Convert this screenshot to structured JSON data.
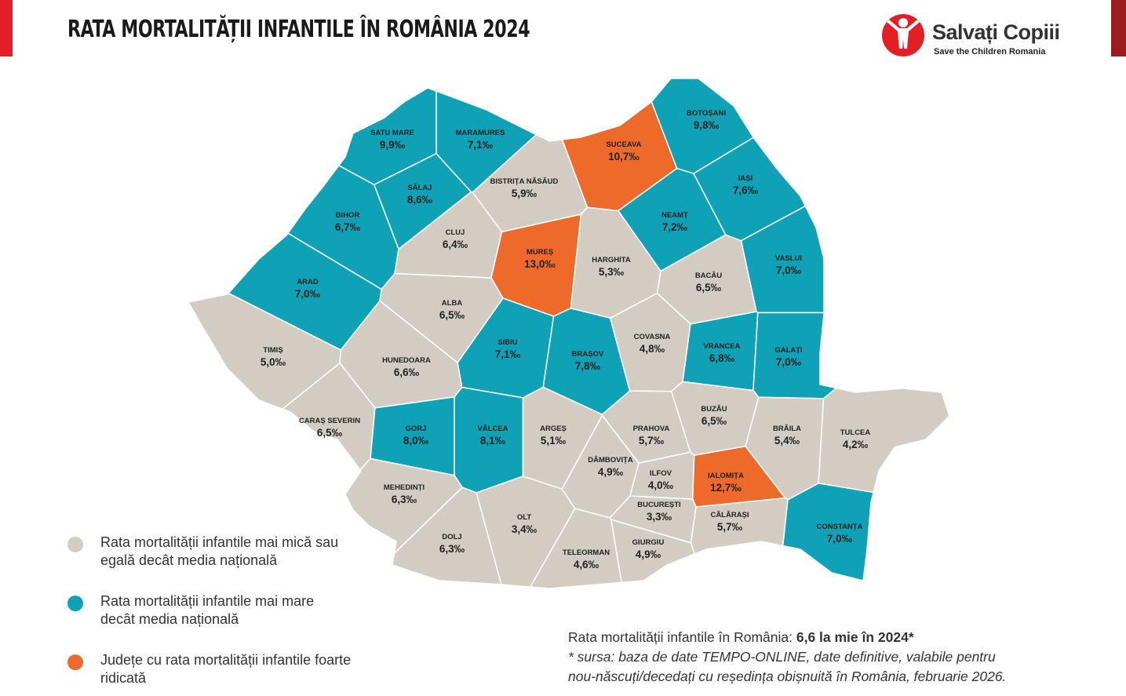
{
  "header": {
    "title": "RATA MORTALITĂȚII INFANTILE ÎN ROMÂNIA 2024",
    "logo_name": "Salvați Copiii",
    "logo_subtitle": "Save the Children Romania"
  },
  "legend": [
    {
      "label": "Rata mortalității infantile mai mică sau egală decât media națională",
      "color": "#d2ccc2"
    },
    {
      "label": "Rata mortalității infantile mai mare decât media națională",
      "color": "#0fa2b6"
    },
    {
      "label": "Județe cu rata mortalității infantile foarte ridicată",
      "color": "#ee6a2b"
    }
  ],
  "counties": [
    {
      "name": "SATU MARE",
      "rate": "9,9‰",
      "group": 1
    },
    {
      "name": "MARAMUREȘ",
      "rate": "7,1‰",
      "group": 1
    },
    {
      "name": "BOTOȘANI",
      "rate": "9,8‰",
      "group": 1
    },
    {
      "name": "SUCEAVA",
      "rate": "10,7‰",
      "group": 2
    },
    {
      "name": "SĂLAJ",
      "rate": "8,6‰",
      "group": 1
    },
    {
      "name": "BISTRIȚA NĂSĂUD",
      "rate": "5,9‰",
      "group": 0
    },
    {
      "name": "IAȘI",
      "rate": "7,6‰",
      "group": 1
    },
    {
      "name": "BIHOR",
      "rate": "6,7‰",
      "group": 1
    },
    {
      "name": "CLUJ",
      "rate": "6,4‰",
      "group": 0
    },
    {
      "name": "NEAMȚ",
      "rate": "7,2‰",
      "group": 1
    },
    {
      "name": "MUREȘ",
      "rate": "13,0‰",
      "group": 2
    },
    {
      "name": "HARGHITA",
      "rate": "5,3‰",
      "group": 0
    },
    {
      "name": "VASLUI",
      "rate": "7,0‰",
      "group": 1
    },
    {
      "name": "BACĂU",
      "rate": "6,5‰",
      "group": 0
    },
    {
      "name": "ARAD",
      "rate": "7,0‰",
      "group": 1
    },
    {
      "name": "ALBA",
      "rate": "6,5‰",
      "group": 0
    },
    {
      "name": "TIMIȘ",
      "rate": "5,0‰",
      "group": 0
    },
    {
      "name": "HUNEDOARA",
      "rate": "6,6‰",
      "group": 0
    },
    {
      "name": "SIBIU",
      "rate": "7,1‰",
      "group": 1
    },
    {
      "name": "BRAȘOV",
      "rate": "7,8‰",
      "group": 1
    },
    {
      "name": "COVASNA",
      "rate": "4,8‰",
      "group": 0
    },
    {
      "name": "VRANCEA",
      "rate": "6,8‰",
      "group": 1
    },
    {
      "name": "GALAȚI",
      "rate": "7,0‰",
      "group": 1
    },
    {
      "name": "CARAȘ SEVERIN",
      "rate": "6,5‰",
      "group": 0
    },
    {
      "name": "GORJ",
      "rate": "8,0‰",
      "group": 1
    },
    {
      "name": "VÂLCEA",
      "rate": "8,1‰",
      "group": 1
    },
    {
      "name": "ARGEȘ",
      "rate": "5,1‰",
      "group": 0
    },
    {
      "name": "PRAHOVA",
      "rate": "5,7‰",
      "group": 0
    },
    {
      "name": "BUZĂU",
      "rate": "6,5‰",
      "group": 0
    },
    {
      "name": "BRĂILA",
      "rate": "5,4‰",
      "group": 0
    },
    {
      "name": "TULCEA",
      "rate": "4,2‰",
      "group": 0
    },
    {
      "name": "DÂMBOVIȚA",
      "rate": "4,9‰",
      "group": 0
    },
    {
      "name": "MEHEDINȚI",
      "rate": "6,3‰",
      "group": 0
    },
    {
      "name": "ILFOV",
      "rate": "4,0‰",
      "group": 0
    },
    {
      "name": "IALOMIȚA",
      "rate": "12,7‰",
      "group": 2
    },
    {
      "name": "BUCUREȘTI",
      "rate": "3,3‰",
      "group": 0
    },
    {
      "name": "CĂLĂRAȘI",
      "rate": "5,7‰",
      "group": 0
    },
    {
      "name": "CONSTANȚA",
      "rate": "7,0‰",
      "group": 1
    },
    {
      "name": "DOLJ",
      "rate": "6,3‰",
      "group": 0
    },
    {
      "name": "OLT",
      "rate": "3,4‰",
      "group": 0
    },
    {
      "name": "TELEORMAN",
      "rate": "4,6‰",
      "group": 0
    },
    {
      "name": "GIURGIU",
      "rate": "4,9‰",
      "group": 0
    }
  ],
  "footer": {
    "national_label": "Rata mortalității infantile în România:",
    "national_value": "6,6 la mie în 2024*",
    "source_lines": [
      "* sursa: baza de date TEMPO-ONLINE, date definitive, valabile pentru",
      "nou-născuți/decedați cu reședința obișnuită în România, februarie 2026."
    ]
  }
}
